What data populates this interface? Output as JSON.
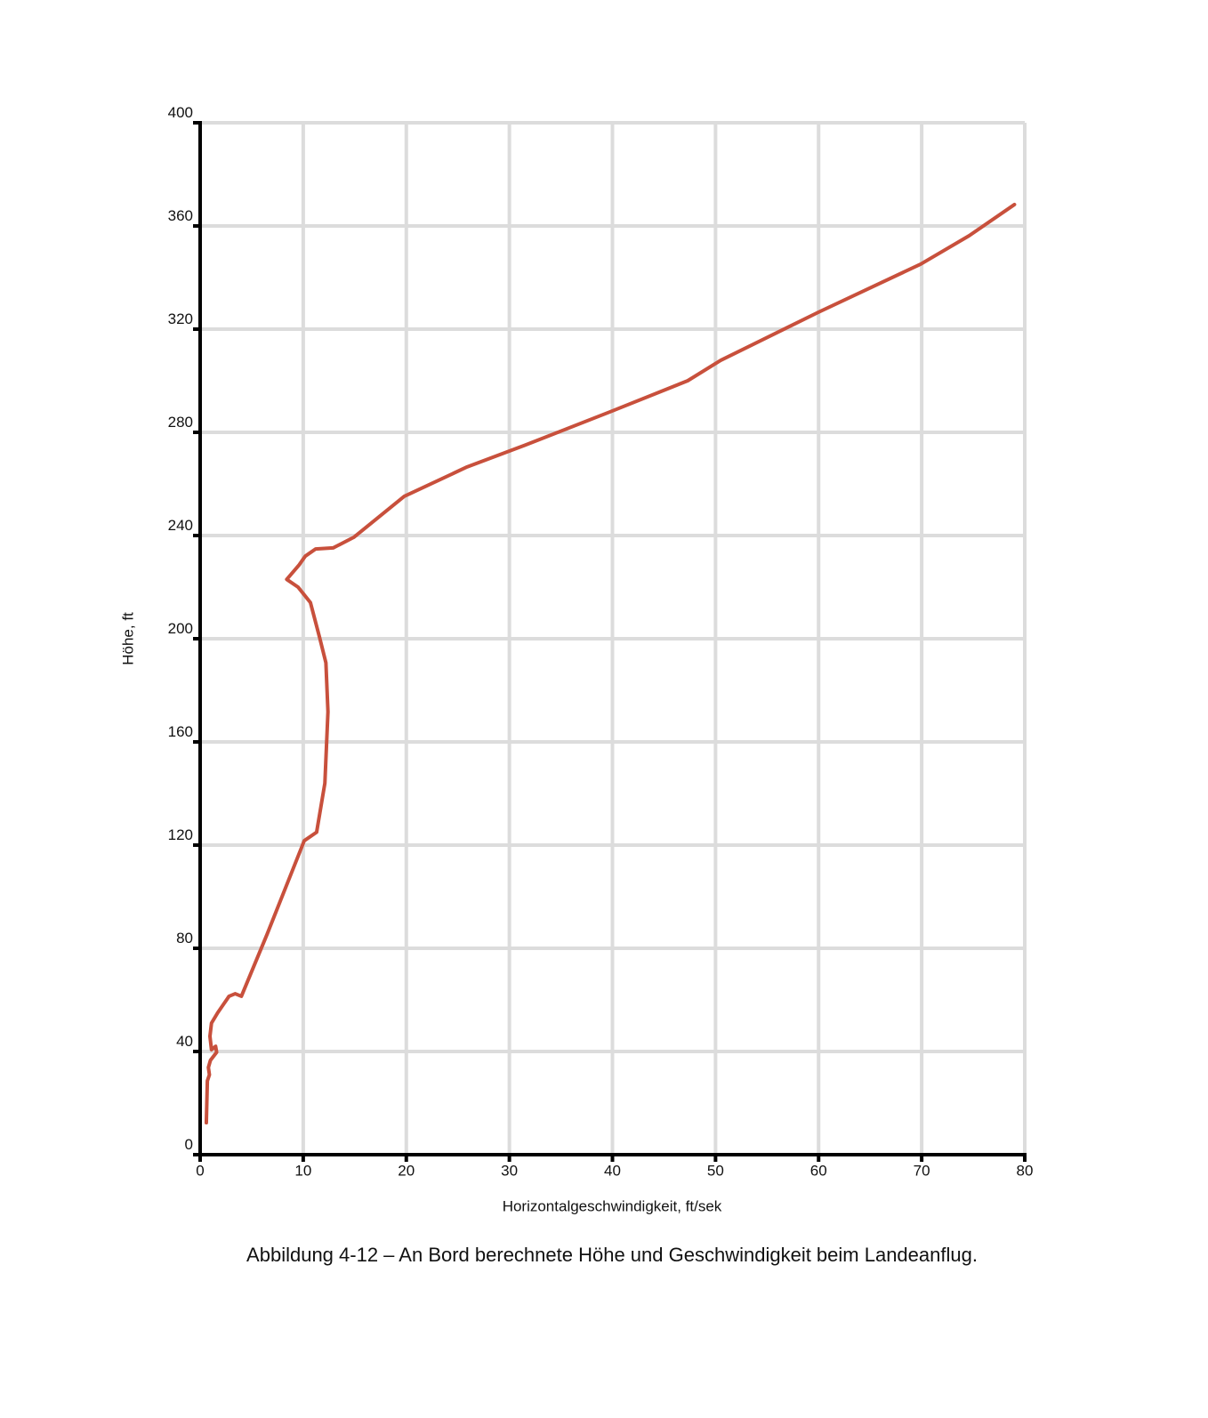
{
  "chart_data": {
    "type": "line",
    "x_label": "Horizontalgeschwindigkeit, ft/sek",
    "y_label": "Höhe, ft",
    "caption": "Abbildung 4-12  –  An Bord berechnete Höhe und Geschwindigkeit beim Landeanflug.",
    "x": [
      0.6,
      0.7,
      0.9,
      0.8,
      1.0,
      1.6,
      1.5,
      1.1,
      0.95,
      1.1,
      1.7,
      2.8,
      3.4,
      4.0,
      6.5,
      10.1,
      11.3,
      12.1,
      12.4,
      12.2,
      11.6,
      10.7,
      9.5,
      8.4,
      9.6,
      10.2,
      11.2,
      12.9,
      14.9,
      19.8,
      25.9,
      31.5,
      39.8,
      47.3,
      50.5,
      60,
      69.9,
      74.6,
      79
    ],
    "series": [
      {
        "color": "#c8503c",
        "values": [
          12.4,
          28.6,
          31,
          33.8,
          36.6,
          39.7,
          42,
          40.7,
          45.9,
          51,
          55,
          61.4,
          62.4,
          61.4,
          85.5,
          121.7,
          125,
          144,
          171.7,
          190.7,
          200.3,
          214,
          220,
          223,
          228.6,
          232,
          234.8,
          235.2,
          239.3,
          255.2,
          266.6,
          275,
          288,
          300,
          307.9,
          326.6,
          345.2,
          356.2,
          368.3
        ]
      }
    ],
    "xlim": [
      0,
      80
    ],
    "xticks": [
      0,
      10,
      20,
      30,
      40,
      50,
      60,
      70,
      80
    ],
    "ylim": [
      0,
      400
    ],
    "yticks": [
      0,
      40,
      80,
      120,
      160,
      200,
      240,
      280,
      320,
      360,
      400
    ],
    "grid": true
  }
}
